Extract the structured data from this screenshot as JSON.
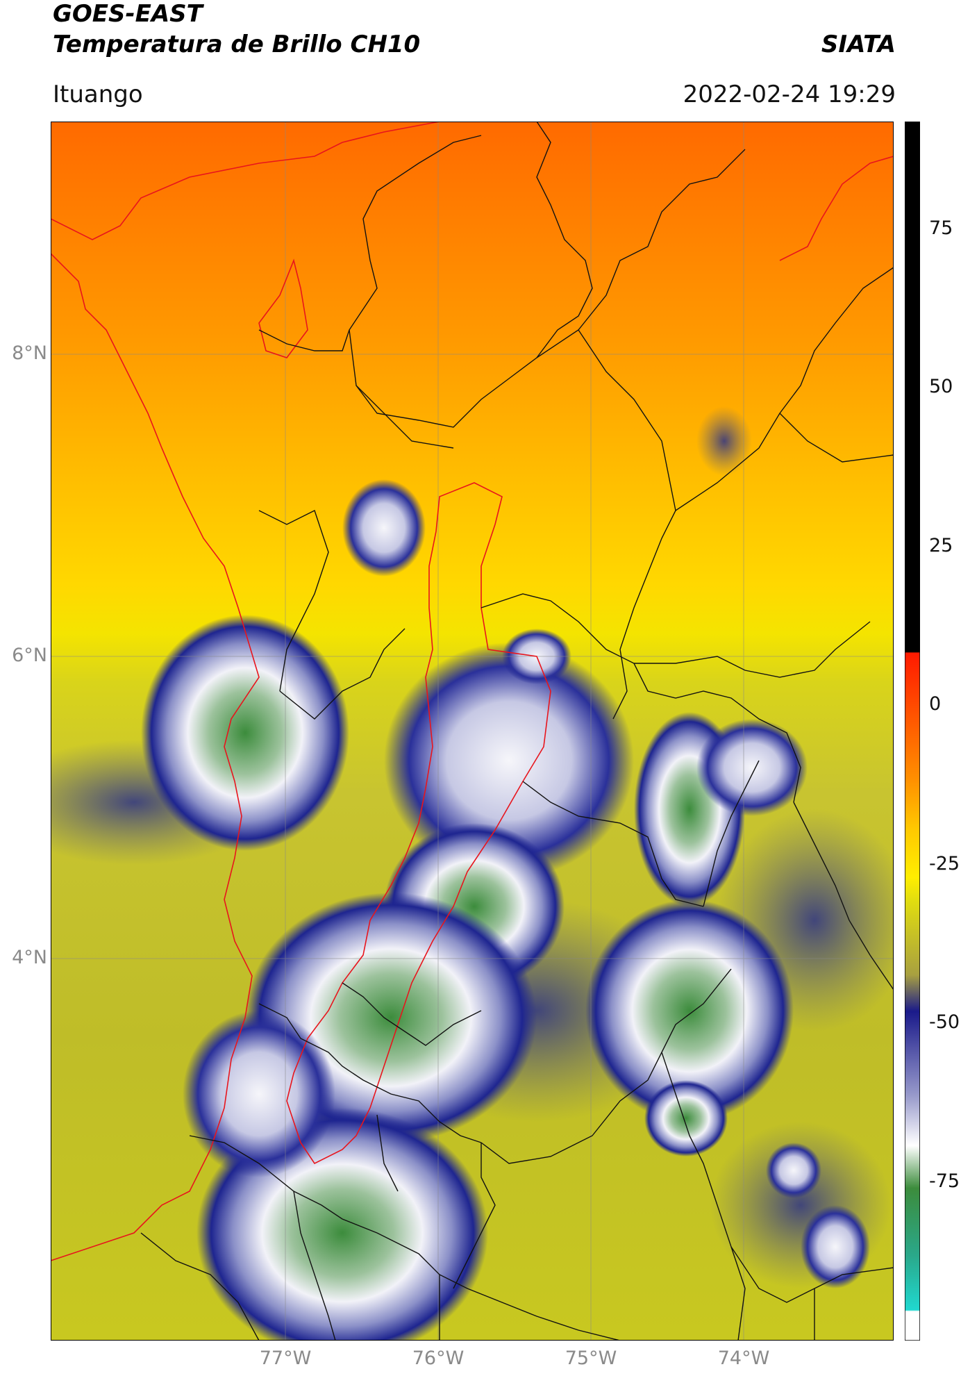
{
  "header": {
    "satellite": "GOES-EAST",
    "product": "Temperatura de Brillo CH10",
    "agency": "SIATA",
    "region": "Ituango",
    "timestamp": "2022-02-24 19:29"
  },
  "map": {
    "lat_ticks": [
      "8°N",
      "6°N",
      "4°N"
    ],
    "lon_ticks": [
      "77°W",
      "76°W",
      "75°W",
      "74°W"
    ],
    "gridlines": true,
    "boundary_colors": {
      "country_coast": "#e8141c",
      "departments": "#000000",
      "region": "#e8141c"
    }
  },
  "colorbar": {
    "ticks": [
      "75",
      "50",
      "25",
      "0",
      "-25",
      "-50",
      "-75"
    ],
    "colors": [
      "#000000",
      "#ff1a00",
      "#ff7a00",
      "#ffd000",
      "#e6e600",
      "#c8c820",
      "#1a1a8a",
      "#ffffff",
      "#3c8c3c",
      "#20c8c8",
      "#ffffff"
    ]
  }
}
